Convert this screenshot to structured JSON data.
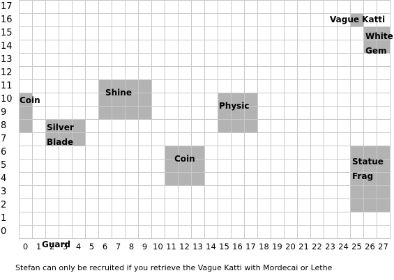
{
  "grid": {
    "cols": 28,
    "rows": 18,
    "x_labels": [
      "0",
      "1",
      "2",
      "3",
      "4",
      "5",
      "6",
      "7",
      "8",
      "9",
      "10",
      "11",
      "12",
      "13",
      "14",
      "15",
      "16",
      "17",
      "18",
      "19",
      "20",
      "21",
      "22",
      "23",
      "24",
      "25",
      "26",
      "27"
    ],
    "y_labels": [
      "17",
      "16",
      "15",
      "14",
      "13",
      "12",
      "11",
      "10",
      "9",
      "8",
      "7",
      "6",
      "5",
      "4",
      "3",
      "2",
      "1",
      "0"
    ],
    "line_color": "#c8c8c8",
    "block_color": "#b3b3b3"
  },
  "items": [
    {
      "name": "Coin",
      "lines": [
        "Coin"
      ],
      "x0": 0,
      "x1": 0,
      "y0": 8,
      "y1": 10
    },
    {
      "name": "Silver Blade",
      "lines": [
        "Silver",
        "Blade"
      ],
      "x0": 2,
      "x1": 4,
      "y0": 7,
      "y1": 8
    },
    {
      "name": "Shine",
      "lines": [
        "Shine"
      ],
      "x0": 6,
      "x1": 9,
      "y0": 9,
      "y1": 11
    },
    {
      "name": "Coin",
      "lines": [
        "Coin"
      ],
      "x0": 11,
      "x1": 13,
      "y0": 4,
      "y1": 6
    },
    {
      "name": "Physic",
      "lines": [
        "Physic"
      ],
      "x0": 15,
      "x1": 17,
      "y0": 8,
      "y1": 10
    },
    {
      "name": "Vague Katti",
      "lines": [
        "Vague Katti"
      ],
      "x0": 25,
      "x1": 25,
      "y0": 16,
      "y1": 16
    },
    {
      "name": "White Gem",
      "lines": [
        "White",
        "Gem"
      ],
      "x0": 26,
      "x1": 27,
      "y0": 14,
      "y1": 15
    },
    {
      "name": "Statue Frag",
      "lines": [
        "Statue",
        "Frag"
      ],
      "x0": 25,
      "x1": 27,
      "y0": 2,
      "y1": 6
    },
    {
      "name": "Guard",
      "lines": [
        "Guard"
      ],
      "x0": 1,
      "x1": 4,
      "y0": -1,
      "y1": -1
    }
  ],
  "note": "Stefan can only be recruited if you retrieve the Vague Katti with Mordecai or Lethe"
}
